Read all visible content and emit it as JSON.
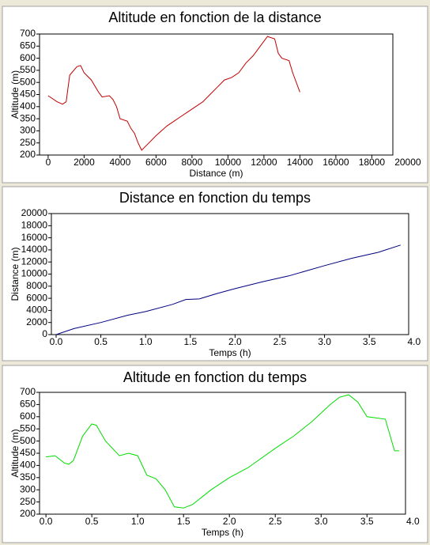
{
  "chart_data": [
    {
      "type": "line",
      "title": "Altitude en fonction de la distance",
      "xlabel": "Distance (m)",
      "ylabel": "Altitude (m)",
      "x": [
        0,
        500,
        800,
        1000,
        1200,
        1600,
        1800,
        2000,
        2400,
        2800,
        3000,
        3400,
        3600,
        3800,
        4000,
        4400,
        4600,
        4800,
        5000,
        5200,
        5400,
        6000,
        6600,
        7000,
        7400,
        7800,
        8200,
        8600,
        9000,
        9400,
        9800,
        10200,
        10600,
        11000,
        11400,
        11800,
        12200,
        12600,
        12800,
        13000,
        13400,
        13600,
        14000
      ],
      "series": [
        {
          "name": "Altitude",
          "color": "#c00000",
          "values": [
            445,
            420,
            410,
            420,
            530,
            565,
            570,
            540,
            510,
            460,
            440,
            445,
            430,
            400,
            350,
            340,
            310,
            290,
            250,
            220,
            235,
            280,
            320,
            340,
            360,
            380,
            400,
            420,
            450,
            480,
            510,
            520,
            540,
            580,
            610,
            650,
            690,
            680,
            620,
            600,
            590,
            540,
            460
          ]
        }
      ],
      "xlim": [
        -480,
        19170
      ],
      "xticks": [
        0,
        2000,
        4000,
        6000,
        8000,
        10000,
        12000,
        14000,
        16000,
        18000,
        20000
      ],
      "ylim": [
        200,
        700
      ],
      "yticks": [
        200,
        250,
        300,
        350,
        400,
        450,
        500,
        550,
        600,
        650,
        700
      ]
    },
    {
      "type": "line",
      "title": "Distance en fonction du temps",
      "xlabel": "Temps (h)",
      "ylabel": "Distance (m)",
      "x": [
        0,
        0.2,
        0.5,
        0.8,
        1.0,
        1.3,
        1.45,
        1.6,
        1.8,
        2.0,
        2.3,
        2.6,
        3.0,
        3.3,
        3.6,
        3.85
      ],
      "series": [
        {
          "name": "Distance",
          "color": "#000080",
          "values": [
            0,
            1000,
            2000,
            3200,
            3800,
            5000,
            5800,
            5900,
            6800,
            7600,
            8700,
            9700,
            11400,
            12600,
            13600,
            14800
          ]
        }
      ],
      "xlim": [
        -0.053,
        3.94
      ],
      "xticks": [
        {
          "value": 0,
          "label": "0.0"
        },
        0.5,
        {
          "value": 1,
          "label": "1.0"
        },
        1.5,
        {
          "value": 2,
          "label": "2.0"
        },
        2.5,
        {
          "value": 3,
          "label": "3.0"
        },
        3.5,
        {
          "value": 4,
          "label": "4.0"
        }
      ],
      "ylim": [
        0,
        20000
      ],
      "yticks": [
        0,
        2000,
        4000,
        6000,
        8000,
        10000,
        12000,
        14000,
        16000,
        18000,
        20000
      ]
    },
    {
      "type": "line",
      "title": "Altitude en fonction du temps",
      "xlabel": "Temps (h)",
      "ylabel": "Altitude (m)",
      "x": [
        0,
        0.1,
        0.2,
        0.25,
        0.3,
        0.4,
        0.5,
        0.55,
        0.65,
        0.8,
        0.9,
        1.0,
        1.1,
        1.2,
        1.3,
        1.4,
        1.5,
        1.6,
        1.8,
        2.0,
        2.2,
        2.5,
        2.7,
        2.9,
        3.1,
        3.2,
        3.3,
        3.4,
        3.5,
        3.7,
        3.8,
        3.85
      ],
      "series": [
        {
          "name": "Altitude",
          "color": "#00dd00",
          "values": [
            435,
            440,
            410,
            405,
            420,
            520,
            570,
            565,
            500,
            440,
            450,
            440,
            360,
            345,
            300,
            230,
            225,
            240,
            300,
            350,
            390,
            470,
            520,
            580,
            650,
            680,
            690,
            660,
            600,
            590,
            460,
            460
          ]
        }
      ],
      "xlim": [
        -0.07,
        3.92
      ],
      "xticks": [
        {
          "value": 0,
          "label": "0.0"
        },
        0.5,
        {
          "value": 1,
          "label": "1.0"
        },
        1.5,
        {
          "value": 2,
          "label": "2.0"
        },
        2.5,
        {
          "value": 3,
          "label": "3.0"
        },
        3.5,
        {
          "value": 4,
          "label": "4.0"
        }
      ],
      "ylim": [
        200,
        700
      ],
      "yticks": [
        200,
        250,
        300,
        350,
        400,
        450,
        500,
        550,
        600,
        650,
        700
      ]
    }
  ]
}
